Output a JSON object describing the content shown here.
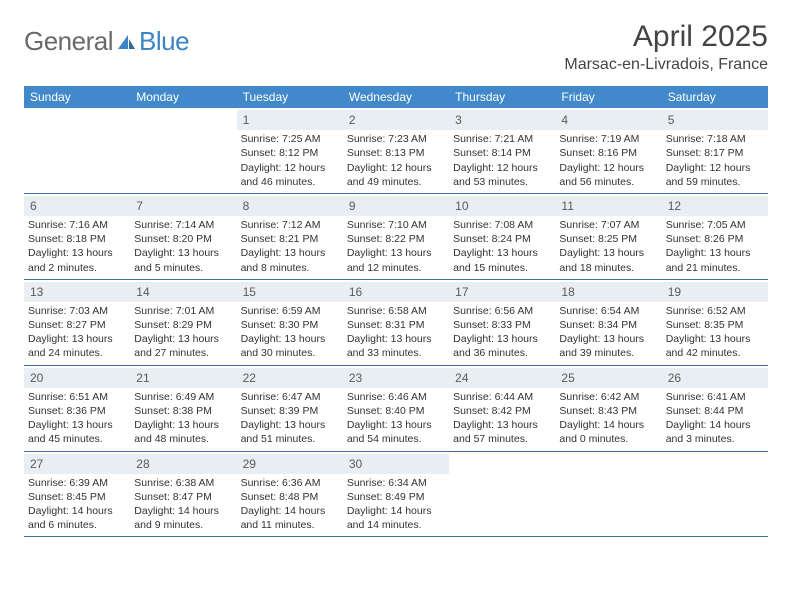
{
  "logo": {
    "text1": "General",
    "text2": "Blue"
  },
  "title": "April 2025",
  "location": "Marsac-en-Livradois, France",
  "colors": {
    "header_bg": "#4189ca",
    "daynum_bg": "#e9eef2",
    "rule": "#3f6f9e",
    "logo_gray": "#6a6a6a",
    "logo_blue": "#3d84c4"
  },
  "calendar": {
    "days_of_week": [
      "Sunday",
      "Monday",
      "Tuesday",
      "Wednesday",
      "Thursday",
      "Friday",
      "Saturday"
    ],
    "weeks": [
      [
        {
          "empty": true
        },
        {
          "empty": true
        },
        {
          "num": "1",
          "sunrise": "Sunrise: 7:25 AM",
          "sunset": "Sunset: 8:12 PM",
          "daylight": "Daylight: 12 hours and 46 minutes."
        },
        {
          "num": "2",
          "sunrise": "Sunrise: 7:23 AM",
          "sunset": "Sunset: 8:13 PM",
          "daylight": "Daylight: 12 hours and 49 minutes."
        },
        {
          "num": "3",
          "sunrise": "Sunrise: 7:21 AM",
          "sunset": "Sunset: 8:14 PM",
          "daylight": "Daylight: 12 hours and 53 minutes."
        },
        {
          "num": "4",
          "sunrise": "Sunrise: 7:19 AM",
          "sunset": "Sunset: 8:16 PM",
          "daylight": "Daylight: 12 hours and 56 minutes."
        },
        {
          "num": "5",
          "sunrise": "Sunrise: 7:18 AM",
          "sunset": "Sunset: 8:17 PM",
          "daylight": "Daylight: 12 hours and 59 minutes."
        }
      ],
      [
        {
          "num": "6",
          "sunrise": "Sunrise: 7:16 AM",
          "sunset": "Sunset: 8:18 PM",
          "daylight": "Daylight: 13 hours and 2 minutes."
        },
        {
          "num": "7",
          "sunrise": "Sunrise: 7:14 AM",
          "sunset": "Sunset: 8:20 PM",
          "daylight": "Daylight: 13 hours and 5 minutes."
        },
        {
          "num": "8",
          "sunrise": "Sunrise: 7:12 AM",
          "sunset": "Sunset: 8:21 PM",
          "daylight": "Daylight: 13 hours and 8 minutes."
        },
        {
          "num": "9",
          "sunrise": "Sunrise: 7:10 AM",
          "sunset": "Sunset: 8:22 PM",
          "daylight": "Daylight: 13 hours and 12 minutes."
        },
        {
          "num": "10",
          "sunrise": "Sunrise: 7:08 AM",
          "sunset": "Sunset: 8:24 PM",
          "daylight": "Daylight: 13 hours and 15 minutes."
        },
        {
          "num": "11",
          "sunrise": "Sunrise: 7:07 AM",
          "sunset": "Sunset: 8:25 PM",
          "daylight": "Daylight: 13 hours and 18 minutes."
        },
        {
          "num": "12",
          "sunrise": "Sunrise: 7:05 AM",
          "sunset": "Sunset: 8:26 PM",
          "daylight": "Daylight: 13 hours and 21 minutes."
        }
      ],
      [
        {
          "num": "13",
          "sunrise": "Sunrise: 7:03 AM",
          "sunset": "Sunset: 8:27 PM",
          "daylight": "Daylight: 13 hours and 24 minutes."
        },
        {
          "num": "14",
          "sunrise": "Sunrise: 7:01 AM",
          "sunset": "Sunset: 8:29 PM",
          "daylight": "Daylight: 13 hours and 27 minutes."
        },
        {
          "num": "15",
          "sunrise": "Sunrise: 6:59 AM",
          "sunset": "Sunset: 8:30 PM",
          "daylight": "Daylight: 13 hours and 30 minutes."
        },
        {
          "num": "16",
          "sunrise": "Sunrise: 6:58 AM",
          "sunset": "Sunset: 8:31 PM",
          "daylight": "Daylight: 13 hours and 33 minutes."
        },
        {
          "num": "17",
          "sunrise": "Sunrise: 6:56 AM",
          "sunset": "Sunset: 8:33 PM",
          "daylight": "Daylight: 13 hours and 36 minutes."
        },
        {
          "num": "18",
          "sunrise": "Sunrise: 6:54 AM",
          "sunset": "Sunset: 8:34 PM",
          "daylight": "Daylight: 13 hours and 39 minutes."
        },
        {
          "num": "19",
          "sunrise": "Sunrise: 6:52 AM",
          "sunset": "Sunset: 8:35 PM",
          "daylight": "Daylight: 13 hours and 42 minutes."
        }
      ],
      [
        {
          "num": "20",
          "sunrise": "Sunrise: 6:51 AM",
          "sunset": "Sunset: 8:36 PM",
          "daylight": "Daylight: 13 hours and 45 minutes."
        },
        {
          "num": "21",
          "sunrise": "Sunrise: 6:49 AM",
          "sunset": "Sunset: 8:38 PM",
          "daylight": "Daylight: 13 hours and 48 minutes."
        },
        {
          "num": "22",
          "sunrise": "Sunrise: 6:47 AM",
          "sunset": "Sunset: 8:39 PM",
          "daylight": "Daylight: 13 hours and 51 minutes."
        },
        {
          "num": "23",
          "sunrise": "Sunrise: 6:46 AM",
          "sunset": "Sunset: 8:40 PM",
          "daylight": "Daylight: 13 hours and 54 minutes."
        },
        {
          "num": "24",
          "sunrise": "Sunrise: 6:44 AM",
          "sunset": "Sunset: 8:42 PM",
          "daylight": "Daylight: 13 hours and 57 minutes."
        },
        {
          "num": "25",
          "sunrise": "Sunrise: 6:42 AM",
          "sunset": "Sunset: 8:43 PM",
          "daylight": "Daylight: 14 hours and 0 minutes."
        },
        {
          "num": "26",
          "sunrise": "Sunrise: 6:41 AM",
          "sunset": "Sunset: 8:44 PM",
          "daylight": "Daylight: 14 hours and 3 minutes."
        }
      ],
      [
        {
          "num": "27",
          "sunrise": "Sunrise: 6:39 AM",
          "sunset": "Sunset: 8:45 PM",
          "daylight": "Daylight: 14 hours and 6 minutes."
        },
        {
          "num": "28",
          "sunrise": "Sunrise: 6:38 AM",
          "sunset": "Sunset: 8:47 PM",
          "daylight": "Daylight: 14 hours and 9 minutes."
        },
        {
          "num": "29",
          "sunrise": "Sunrise: 6:36 AM",
          "sunset": "Sunset: 8:48 PM",
          "daylight": "Daylight: 14 hours and 11 minutes."
        },
        {
          "num": "30",
          "sunrise": "Sunrise: 6:34 AM",
          "sunset": "Sunset: 8:49 PM",
          "daylight": "Daylight: 14 hours and 14 minutes."
        },
        {
          "empty": true
        },
        {
          "empty": true
        },
        {
          "empty": true
        }
      ]
    ]
  }
}
